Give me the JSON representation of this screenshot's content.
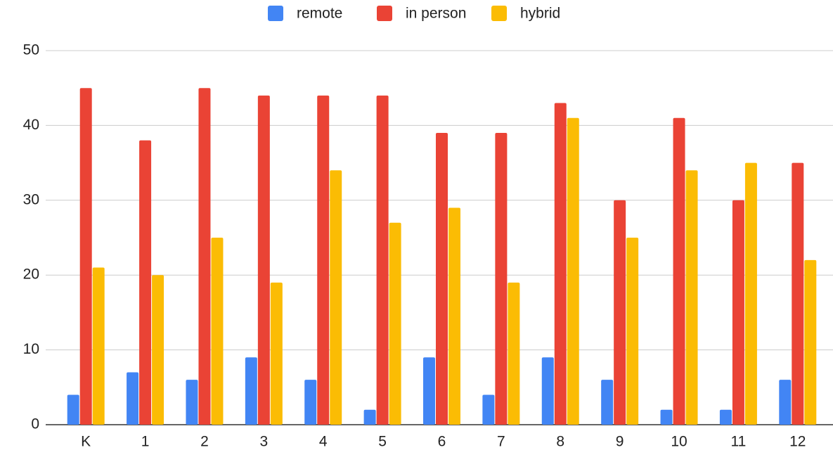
{
  "chart_data": {
    "type": "bar",
    "categories": [
      "K",
      "1",
      "2",
      "3",
      "4",
      "5",
      "6",
      "7",
      "8",
      "9",
      "10",
      "11",
      "12"
    ],
    "series": [
      {
        "name": "remote",
        "color": "#4285f4",
        "values": [
          4,
          7,
          6,
          9,
          6,
          2,
          9,
          4,
          9,
          6,
          2,
          2,
          6
        ]
      },
      {
        "name": "in person",
        "color": "#ea4335",
        "values": [
          45,
          38,
          45,
          44,
          44,
          44,
          39,
          39,
          43,
          30,
          41,
          30,
          35
        ]
      },
      {
        "name": "hybrid",
        "color": "#fbbc04",
        "values": [
          21,
          20,
          25,
          19,
          34,
          27,
          29,
          19,
          41,
          25,
          34,
          35,
          22
        ]
      }
    ],
    "ylim": [
      0,
      50
    ],
    "yticks": [
      0,
      10,
      20,
      30,
      40,
      50
    ],
    "grid": true,
    "legend": "top"
  }
}
